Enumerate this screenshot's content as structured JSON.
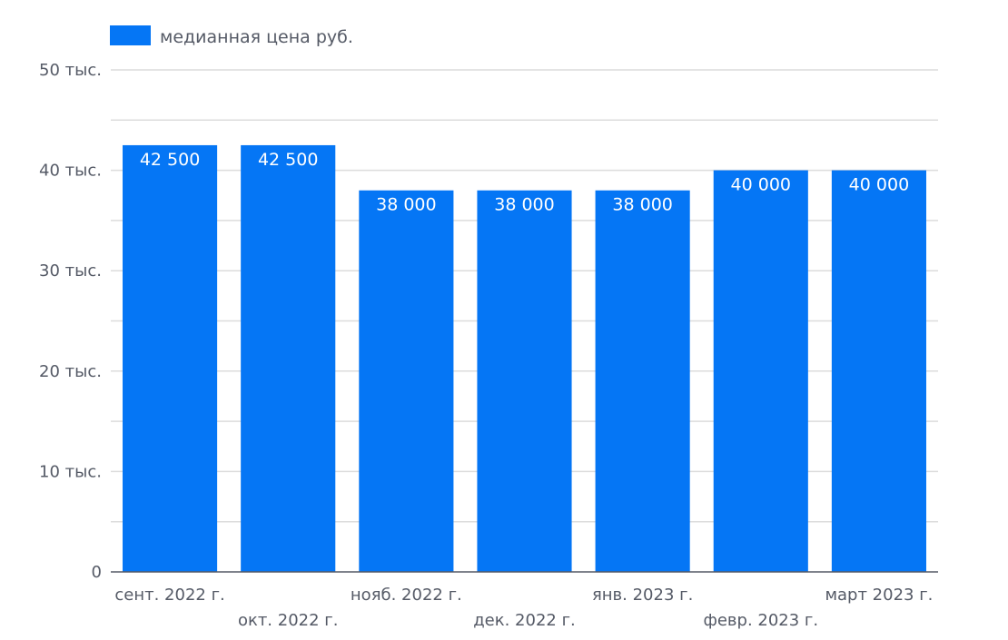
{
  "chart_data": {
    "type": "bar",
    "categories": [
      "сент. 2022 г.",
      "окт. 2022 г.",
      "нояб. 2022 г.",
      "дек. 2022 г.",
      "янв. 2023 г.",
      "февр. 2023 г.",
      "март 2023 г."
    ],
    "series": [
      {
        "name": "медианная цена руб.",
        "values": [
          42500,
          42500,
          38000,
          38000,
          38000,
          40000,
          40000
        ],
        "data_labels": [
          "42 500",
          "42 500",
          "38 000",
          "38 000",
          "38 000",
          "40 000",
          "40 000"
        ]
      }
    ],
    "title": "",
    "xlabel": "",
    "ylabel": "",
    "ylim": [
      0,
      50000
    ],
    "y_ticks": [
      {
        "value": 0,
        "label": "0"
      },
      {
        "value": 10000,
        "label": "10 тыс."
      },
      {
        "value": 20000,
        "label": "20 тыс."
      },
      {
        "value": 30000,
        "label": "30 тыс."
      },
      {
        "value": 40000,
        "label": "40 тыс."
      },
      {
        "value": 50000,
        "label": "50 тыс."
      }
    ],
    "minor_gridline_step": 5000,
    "grid": true,
    "legend_position": "top-left",
    "colors": {
      "bar": "#0576f5",
      "grid": "#dcdcdc",
      "axis": "#555a66",
      "text": "#555a66",
      "data_label": "#ffffff"
    }
  }
}
